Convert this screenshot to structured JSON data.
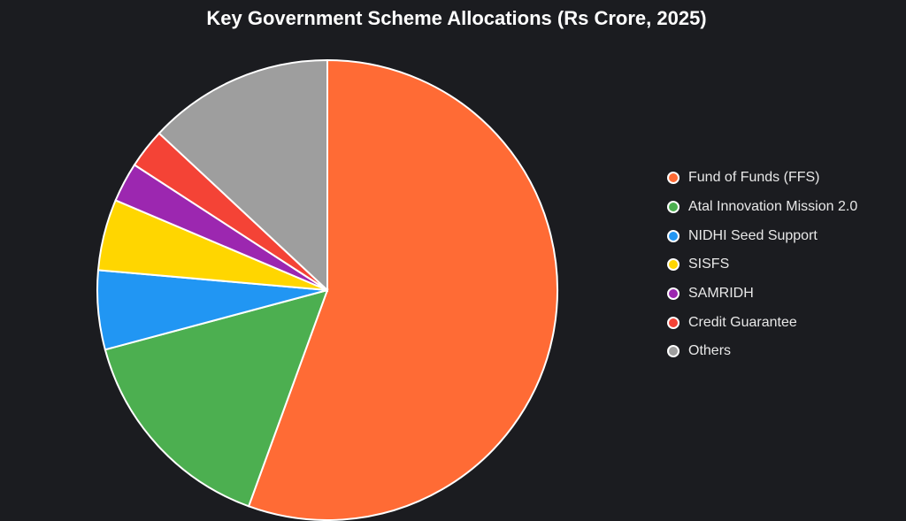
{
  "chart_data": {
    "type": "pie",
    "title": "Key Government Scheme Allocations (Rs Crore, 2025)",
    "categories": [
      "Fund of Funds (FFS)",
      "Atal Innovation Mission 2.0",
      "NIDHI Seed Support",
      "SISFS",
      "SAMRIDH",
      "Credit Guarantee",
      "Others"
    ],
    "values": [
      10000,
      2750,
      1000,
      900,
      500,
      500,
      2350
    ],
    "colors": [
      "#ff6b35",
      "#4caf50",
      "#2196f3",
      "#ffd600",
      "#9c27b0",
      "#f44336",
      "#9e9e9e"
    ],
    "legend": "right"
  }
}
